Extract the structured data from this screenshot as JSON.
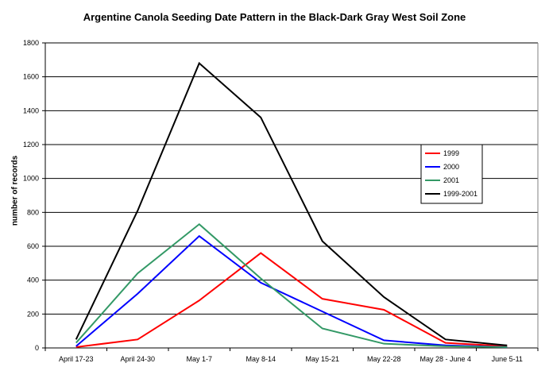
{
  "chart_data": {
    "type": "line",
    "title": "Argentine Canola Seeding Date Pattern in the Black-Dark Gray West Soil Zone",
    "xlabel": "",
    "ylabel": "number of records",
    "categories": [
      "April 17-23",
      "April 24-30",
      "May 1-7",
      "May 8-14",
      "May 15-21",
      "May 22-28",
      "May 28 - June 4",
      "June 5-11"
    ],
    "ylim": [
      0,
      1800
    ],
    "yticks": [
      "0",
      "200",
      "400",
      "600",
      "800",
      "1000",
      "1200",
      "1400",
      "1600",
      "1800"
    ],
    "grid": true,
    "legend_position": "right",
    "series": [
      {
        "name": "1999",
        "color": "#ff0000",
        "values": [
          5,
          50,
          280,
          560,
          290,
          225,
          30,
          10
        ]
      },
      {
        "name": "2000",
        "color": "#0000ff",
        "values": [
          10,
          320,
          660,
          385,
          215,
          45,
          15,
          5
        ]
      },
      {
        "name": "2001",
        "color": "#339966",
        "values": [
          30,
          440,
          730,
          410,
          115,
          25,
          10,
          5
        ]
      },
      {
        "name": "1999-2001",
        "color": "#000000",
        "values": [
          50,
          810,
          1680,
          1360,
          630,
          300,
          50,
          15
        ]
      }
    ]
  }
}
